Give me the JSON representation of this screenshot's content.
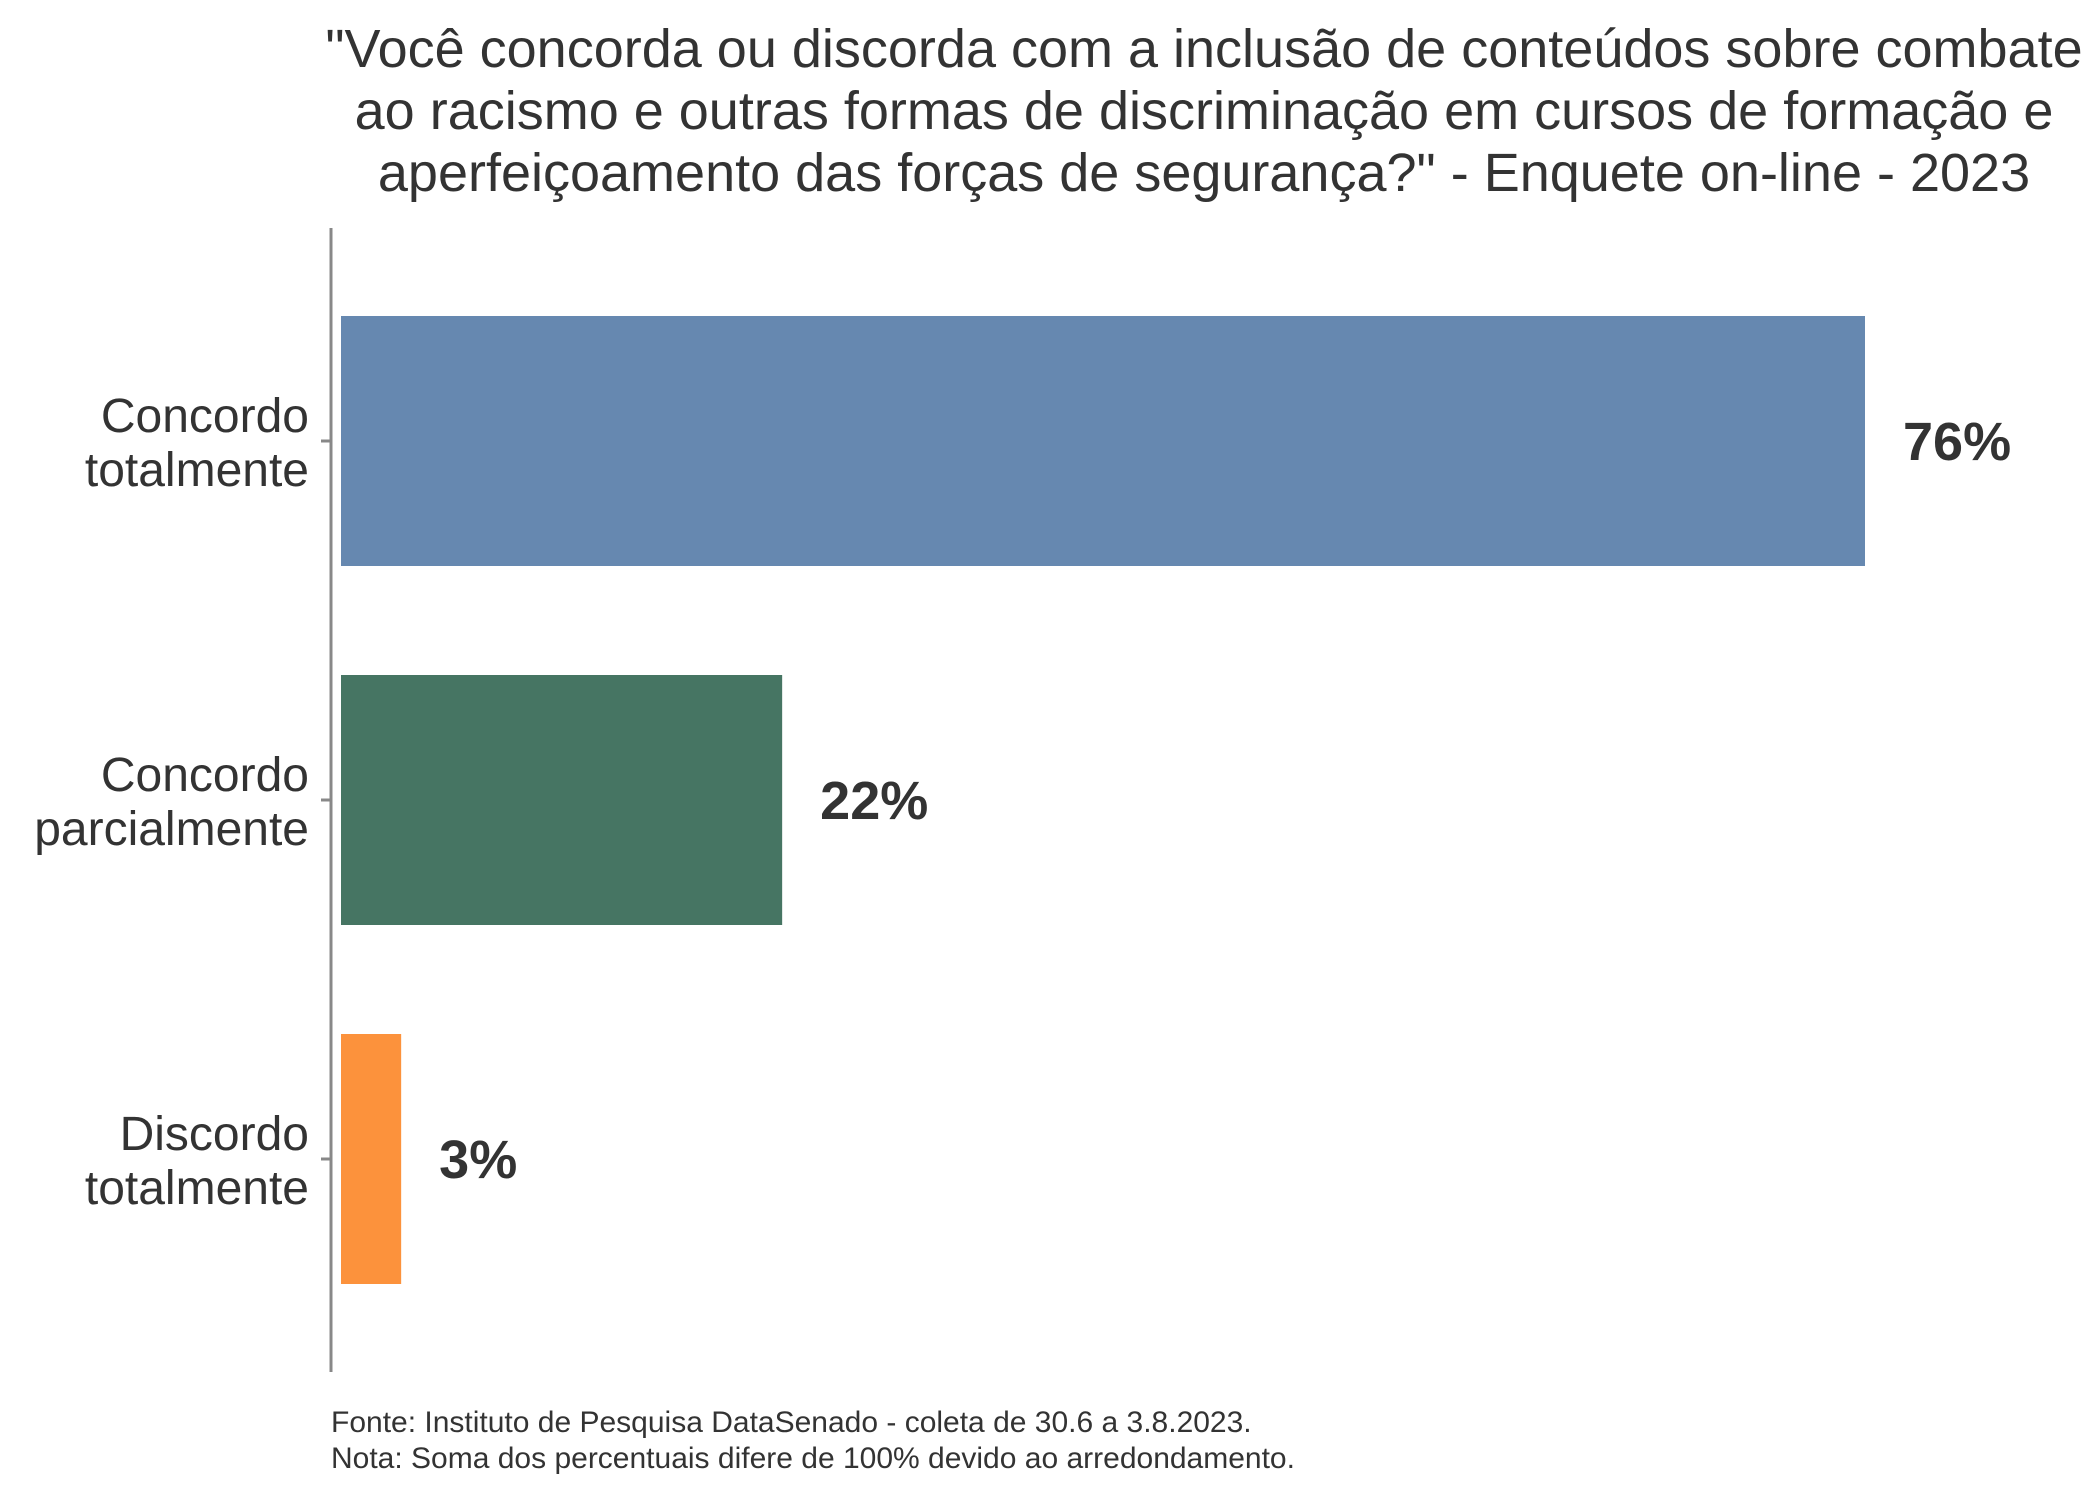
{
  "chart_data": {
    "type": "bar",
    "orientation": "horizontal",
    "title_lines": [
      "\"Você concorda ou discorda com a inclusão de conteúdos sobre combate",
      "ao racismo e outras formas de discriminação em cursos de formação e",
      "aperfeiçoamento das forças de segurança?\" - Enquete on-line - 2023"
    ],
    "categories": [
      [
        "Concordo",
        "totalmente"
      ],
      [
        "Concordo",
        "parcialmente"
      ],
      [
        "Discordo",
        "totalmente"
      ]
    ],
    "values": [
      76,
      22,
      3
    ],
    "value_labels": [
      "76%",
      "22%",
      "3%"
    ],
    "colors": [
      "#6688b0",
      "#467563",
      "#fc923c"
    ],
    "xlim": [
      0,
      100
    ],
    "grid": false,
    "legend": "none",
    "footnotes": [
      "Fonte: Instituto de Pesquisa DataSenado - coleta de 30.6 a 3.8.2023.",
      "Nota: Soma dos percentuais difere de 100% devido ao arredondamento."
    ]
  }
}
